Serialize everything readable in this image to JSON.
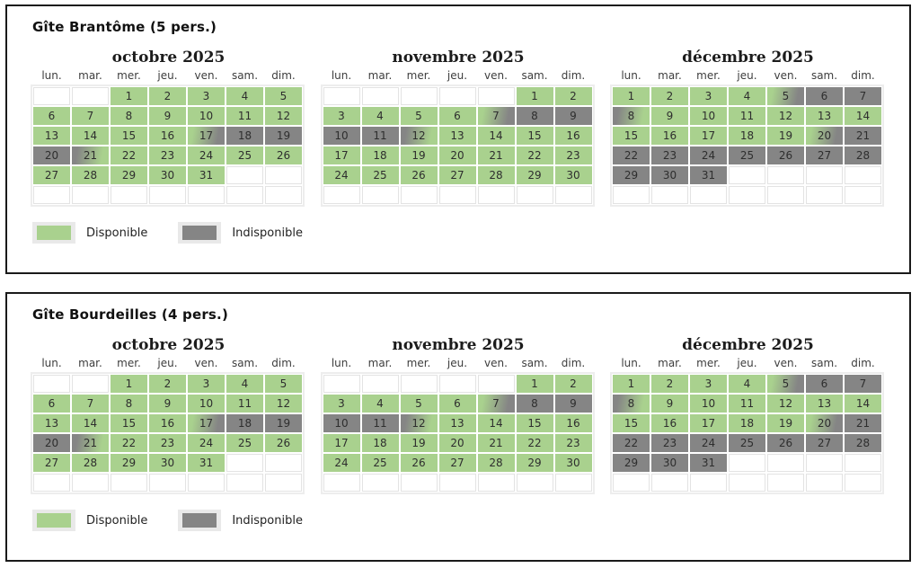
{
  "colors": {
    "available": "#a9d18e",
    "unavailable": "#858585"
  },
  "day_headers": [
    "lun.",
    "mar.",
    "mer.",
    "jeu.",
    "ven.",
    "sam.",
    "dim."
  ],
  "legend": {
    "available_label": "Disponible",
    "unavailable_label": "Indisponible"
  },
  "panels": [
    {
      "title": "Gîte Brantôme (5 pers.)",
      "months": [
        {
          "title": "octobre 2025",
          "weeks": [
            [
              "e",
              "e",
              "1|a",
              "2|a",
              "3|a",
              "4|a",
              "5|a"
            ],
            [
              "6|a",
              "7|a",
              "8|a",
              "9|a",
              "10|a",
              "11|a",
              "12|a"
            ],
            [
              "13|a",
              "14|a",
              "15|a",
              "16|a",
              "17|ag",
              "18|u",
              "19|u"
            ],
            [
              "20|u",
              "21|ga",
              "22|a",
              "23|a",
              "24|a",
              "25|a",
              "26|a"
            ],
            [
              "27|a",
              "28|a",
              "29|a",
              "30|a",
              "31|a",
              "e",
              "e"
            ],
            [
              "e",
              "e",
              "e",
              "e",
              "e",
              "e",
              "e"
            ]
          ]
        },
        {
          "title": "novembre 2025",
          "weeks": [
            [
              "e",
              "e",
              "e",
              "e",
              "e",
              "1|a",
              "2|a"
            ],
            [
              "3|a",
              "4|a",
              "5|a",
              "6|a",
              "7|ag",
              "8|u",
              "9|u"
            ],
            [
              "10|u",
              "11|u",
              "12|ga",
              "13|a",
              "14|a",
              "15|a",
              "16|a"
            ],
            [
              "17|a",
              "18|a",
              "19|a",
              "20|a",
              "21|a",
              "22|a",
              "23|a"
            ],
            [
              "24|a",
              "25|a",
              "26|a",
              "27|a",
              "28|a",
              "29|a",
              "30|a"
            ],
            [
              "e",
              "e",
              "e",
              "e",
              "e",
              "e",
              "e"
            ]
          ]
        },
        {
          "title": "décembre 2025",
          "weeks": [
            [
              "1|a",
              "2|a",
              "3|a",
              "4|a",
              "5|ag",
              "6|u",
              "7|u"
            ],
            [
              "8|ga",
              "9|a",
              "10|a",
              "11|a",
              "12|a",
              "13|a",
              "14|a"
            ],
            [
              "15|a",
              "16|a",
              "17|a",
              "18|a",
              "19|a",
              "20|ag",
              "21|u"
            ],
            [
              "22|u",
              "23|u",
              "24|u",
              "25|u",
              "26|u",
              "27|u",
              "28|u"
            ],
            [
              "29|u",
              "30|u",
              "31|u",
              "e",
              "e",
              "e",
              "e"
            ],
            [
              "e",
              "e",
              "e",
              "e",
              "e",
              "e",
              "e"
            ]
          ]
        }
      ]
    },
    {
      "title": "Gîte Bourdeilles (4 pers.)",
      "months": [
        {
          "title": "octobre 2025",
          "weeks": [
            [
              "e",
              "e",
              "1|a",
              "2|a",
              "3|a",
              "4|a",
              "5|a"
            ],
            [
              "6|a",
              "7|a",
              "8|a",
              "9|a",
              "10|a",
              "11|a",
              "12|a"
            ],
            [
              "13|a",
              "14|a",
              "15|a",
              "16|a",
              "17|ag",
              "18|u",
              "19|u"
            ],
            [
              "20|u",
              "21|ga",
              "22|a",
              "23|a",
              "24|a",
              "25|a",
              "26|a"
            ],
            [
              "27|a",
              "28|a",
              "29|a",
              "30|a",
              "31|a",
              "e",
              "e"
            ],
            [
              "e",
              "e",
              "e",
              "e",
              "e",
              "e",
              "e"
            ]
          ]
        },
        {
          "title": "novembre 2025",
          "weeks": [
            [
              "e",
              "e",
              "e",
              "e",
              "e",
              "1|a",
              "2|a"
            ],
            [
              "3|a",
              "4|a",
              "5|a",
              "6|a",
              "7|ag",
              "8|u",
              "9|u"
            ],
            [
              "10|u",
              "11|u",
              "12|ga",
              "13|a",
              "14|a",
              "15|a",
              "16|a"
            ],
            [
              "17|a",
              "18|a",
              "19|a",
              "20|a",
              "21|a",
              "22|a",
              "23|a"
            ],
            [
              "24|a",
              "25|a",
              "26|a",
              "27|a",
              "28|a",
              "29|a",
              "30|a"
            ],
            [
              "e",
              "e",
              "e",
              "e",
              "e",
              "e",
              "e"
            ]
          ]
        },
        {
          "title": "décembre 2025",
          "weeks": [
            [
              "1|a",
              "2|a",
              "3|a",
              "4|a",
              "5|ag",
              "6|u",
              "7|u"
            ],
            [
              "8|ga",
              "9|a",
              "10|a",
              "11|a",
              "12|a",
              "13|a",
              "14|a"
            ],
            [
              "15|a",
              "16|a",
              "17|a",
              "18|a",
              "19|a",
              "20|ag",
              "21|u"
            ],
            [
              "22|u",
              "23|u",
              "24|u",
              "25|u",
              "26|u",
              "27|u",
              "28|u"
            ],
            [
              "29|u",
              "30|u",
              "31|u",
              "e",
              "e",
              "e",
              "e"
            ],
            [
              "e",
              "e",
              "e",
              "e",
              "e",
              "e",
              "e"
            ]
          ]
        }
      ]
    }
  ]
}
